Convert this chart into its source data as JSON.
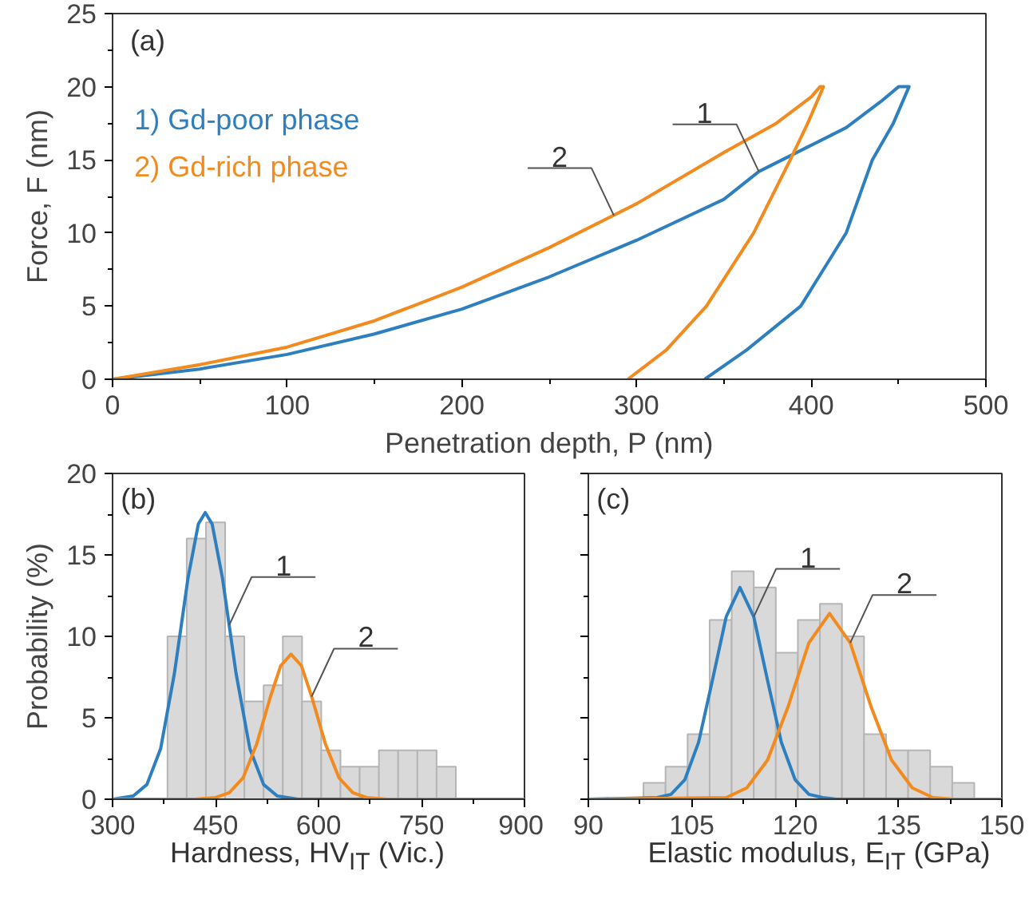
{
  "chart_data": [
    {
      "type": "line",
      "xlabel": "Penetration depth, P (nm)",
      "ylabel": "Force, F (nm)",
      "xlim": [
        0,
        500
      ],
      "xticks": [
        0,
        100,
        200,
        300,
        400,
        500
      ],
      "ylim": [
        0,
        25
      ],
      "yticks": [
        0,
        5,
        10,
        15,
        20,
        25
      ],
      "legend": "top left",
      "annotations": [
        "(a)",
        {
          "text": "1",
          "x": 370,
          "y": 14.2
        },
        {
          "text": "2",
          "x": 287,
          "y": 11.2
        }
      ],
      "series": [
        {
          "name": "1) Gd-poor phase",
          "color": "#2e7fc0",
          "x": [
            0,
            50,
            100,
            150,
            200,
            250,
            300,
            350,
            370,
            400,
            420,
            440,
            450,
            456,
            447,
            435,
            420,
            394,
            363,
            339
          ],
          "values": [
            0,
            0.7,
            1.7,
            3.1,
            4.8,
            7.0,
            9.5,
            12.3,
            14.2,
            16.0,
            17.2,
            19.0,
            20,
            20,
            17.5,
            15,
            10,
            5,
            2,
            0
          ]
        },
        {
          "name": "2) Gd-rich phase",
          "color": "#f28a1e",
          "x": [
            0,
            50,
            100,
            150,
            200,
            250,
            300,
            350,
            380,
            400,
            405,
            407,
            398,
            388,
            367,
            340,
            317,
            295
          ],
          "values": [
            0,
            1.0,
            2.2,
            4.0,
            6.3,
            9.0,
            12.0,
            15.5,
            17.5,
            19.3,
            20,
            20,
            17.5,
            15,
            10,
            5,
            2,
            0
          ]
        }
      ]
    },
    {
      "type": "histogram",
      "xlabel": "Hardness, HV$_{IT}$ (Vic.)",
      "ylabel": "Probability (%)",
      "xlim": [
        300,
        900
      ],
      "xticks": [
        300,
        450,
        600,
        750,
        900
      ],
      "ylim": [
        0,
        20
      ],
      "yticks": [
        0,
        5,
        10,
        15,
        20
      ],
      "color": "#d9d9d9",
      "bins": [
        380,
        408,
        436,
        464,
        492,
        520,
        548,
        576,
        604,
        632,
        660,
        688,
        716,
        744,
        772,
        800
      ],
      "values": [
        10,
        16,
        17,
        10,
        6,
        7,
        10,
        6,
        3,
        2,
        2,
        3,
        3,
        3,
        2
      ],
      "annotations": [
        "(b)",
        {
          "text": "1",
          "x": 470,
          "y": 10.7
        },
        {
          "text": "2",
          "x": 590,
          "y": 6.3
        }
      ],
      "series": [
        {
          "type": "line",
          "color": "#2e7fc0",
          "x": [
            300,
            330,
            350,
            370,
            390,
            410,
            425,
            435,
            445,
            460,
            480,
            500,
            520,
            540,
            570,
            900
          ],
          "values": [
            0,
            0.2,
            0.9,
            3.1,
            7.7,
            13.6,
            16.9,
            17.6,
            16.9,
            13.6,
            7.7,
            3.1,
            0.9,
            0.2,
            0,
            0
          ]
        },
        {
          "type": "line",
          "color": "#f28a1e",
          "x": [
            300,
            420,
            450,
            470,
            490,
            510,
            530,
            545,
            560,
            575,
            590,
            610,
            630,
            650,
            670,
            700,
            900
          ],
          "values": [
            0,
            0,
            0.1,
            0.4,
            1.3,
            3.4,
            6.3,
            8.2,
            8.9,
            8.2,
            6.3,
            3.4,
            1.3,
            0.4,
            0.1,
            0,
            0
          ]
        }
      ]
    },
    {
      "type": "histogram",
      "xlabel": "Elastic modulus, E$_{IT}$ (GPa)",
      "xlim": [
        90,
        150
      ],
      "xticks": [
        90,
        105,
        120,
        135,
        150
      ],
      "ylim": [
        0,
        20
      ],
      "yticks": [
        0,
        5,
        10,
        15,
        20
      ],
      "tick_labels": "x",
      "color": "#d9d9d9",
      "bins": [
        98,
        101.2,
        104.4,
        107.6,
        110.8,
        114,
        117.2,
        120.4,
        123.6,
        126.8,
        130,
        133.2,
        136.4,
        139.6,
        142.8,
        146
      ],
      "values": [
        1,
        2,
        4,
        11,
        14,
        13,
        9,
        11,
        12,
        10,
        4,
        3,
        3,
        2,
        1
      ],
      "annotations": [
        "(c)",
        {
          "text": "1",
          "x": 114,
          "y": 11.2
        },
        {
          "text": "2",
          "x": 128,
          "y": 9.6
        }
      ],
      "series": [
        {
          "type": "line",
          "color": "#2e7fc0",
          "x": [
            90,
            100,
            102,
            104,
            106,
            108,
            110,
            112,
            114,
            116,
            118,
            120,
            122,
            124,
            126,
            150
          ],
          "values": [
            0,
            0.1,
            0.3,
            1.2,
            3.5,
            7.3,
            11.2,
            13,
            11.2,
            7.3,
            3.5,
            1.2,
            0.3,
            0.1,
            0,
            0
          ]
        },
        {
          "type": "line",
          "color": "#f28a1e",
          "x": [
            90,
            110,
            113,
            116,
            119,
            122,
            125,
            128,
            131,
            134,
            137,
            140,
            143,
            150
          ],
          "values": [
            0,
            0.1,
            0.7,
            2.4,
            5.7,
            9.6,
            11.4,
            9.6,
            5.7,
            2.4,
            0.7,
            0.1,
            0,
            0
          ]
        }
      ]
    }
  ]
}
